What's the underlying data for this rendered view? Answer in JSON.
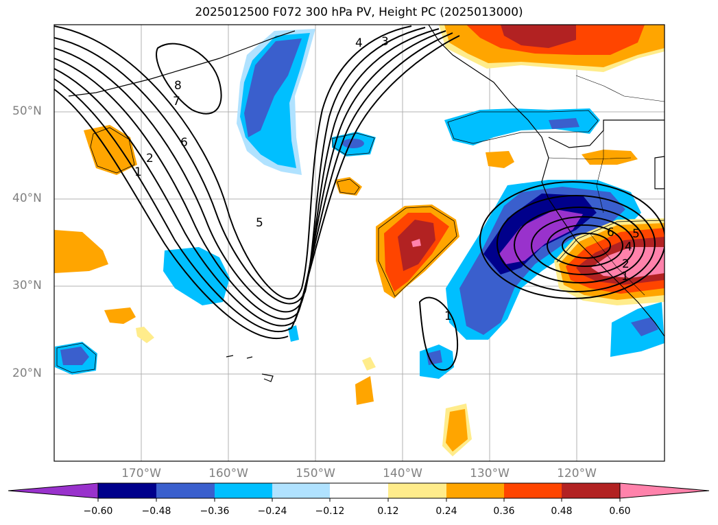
{
  "title": "2025012500 F072 300 hPa PV, Height PC (2025013000)",
  "map": {
    "lat_labels": [
      "50°N",
      "40°N",
      "30°N",
      "20°N"
    ],
    "lon_labels": [
      "170°W",
      "160°W",
      "150°W",
      "140°W",
      "130°W",
      "120°W"
    ]
  },
  "colorbar": {
    "ticks": [
      "−0.60",
      "−0.48",
      "−0.36",
      "−0.24",
      "−0.12",
      "0.12",
      "0.24",
      "0.36",
      "0.48",
      "0.60"
    ],
    "colors": [
      "#9932cc",
      "#00008b",
      "#3a5fcd",
      "#00bfff",
      "#b0e2ff",
      "#ffffff",
      "#ffec8b",
      "#ffa500",
      "#ff4500",
      "#b22222",
      "#ff82ab"
    ]
  },
  "contour_labels": {
    "west": [
      "4",
      "3",
      "8",
      "7",
      "6",
      "2",
      "1",
      "5"
    ],
    "east": [
      "1",
      "6",
      "5",
      "4",
      "2",
      "1"
    ]
  }
}
